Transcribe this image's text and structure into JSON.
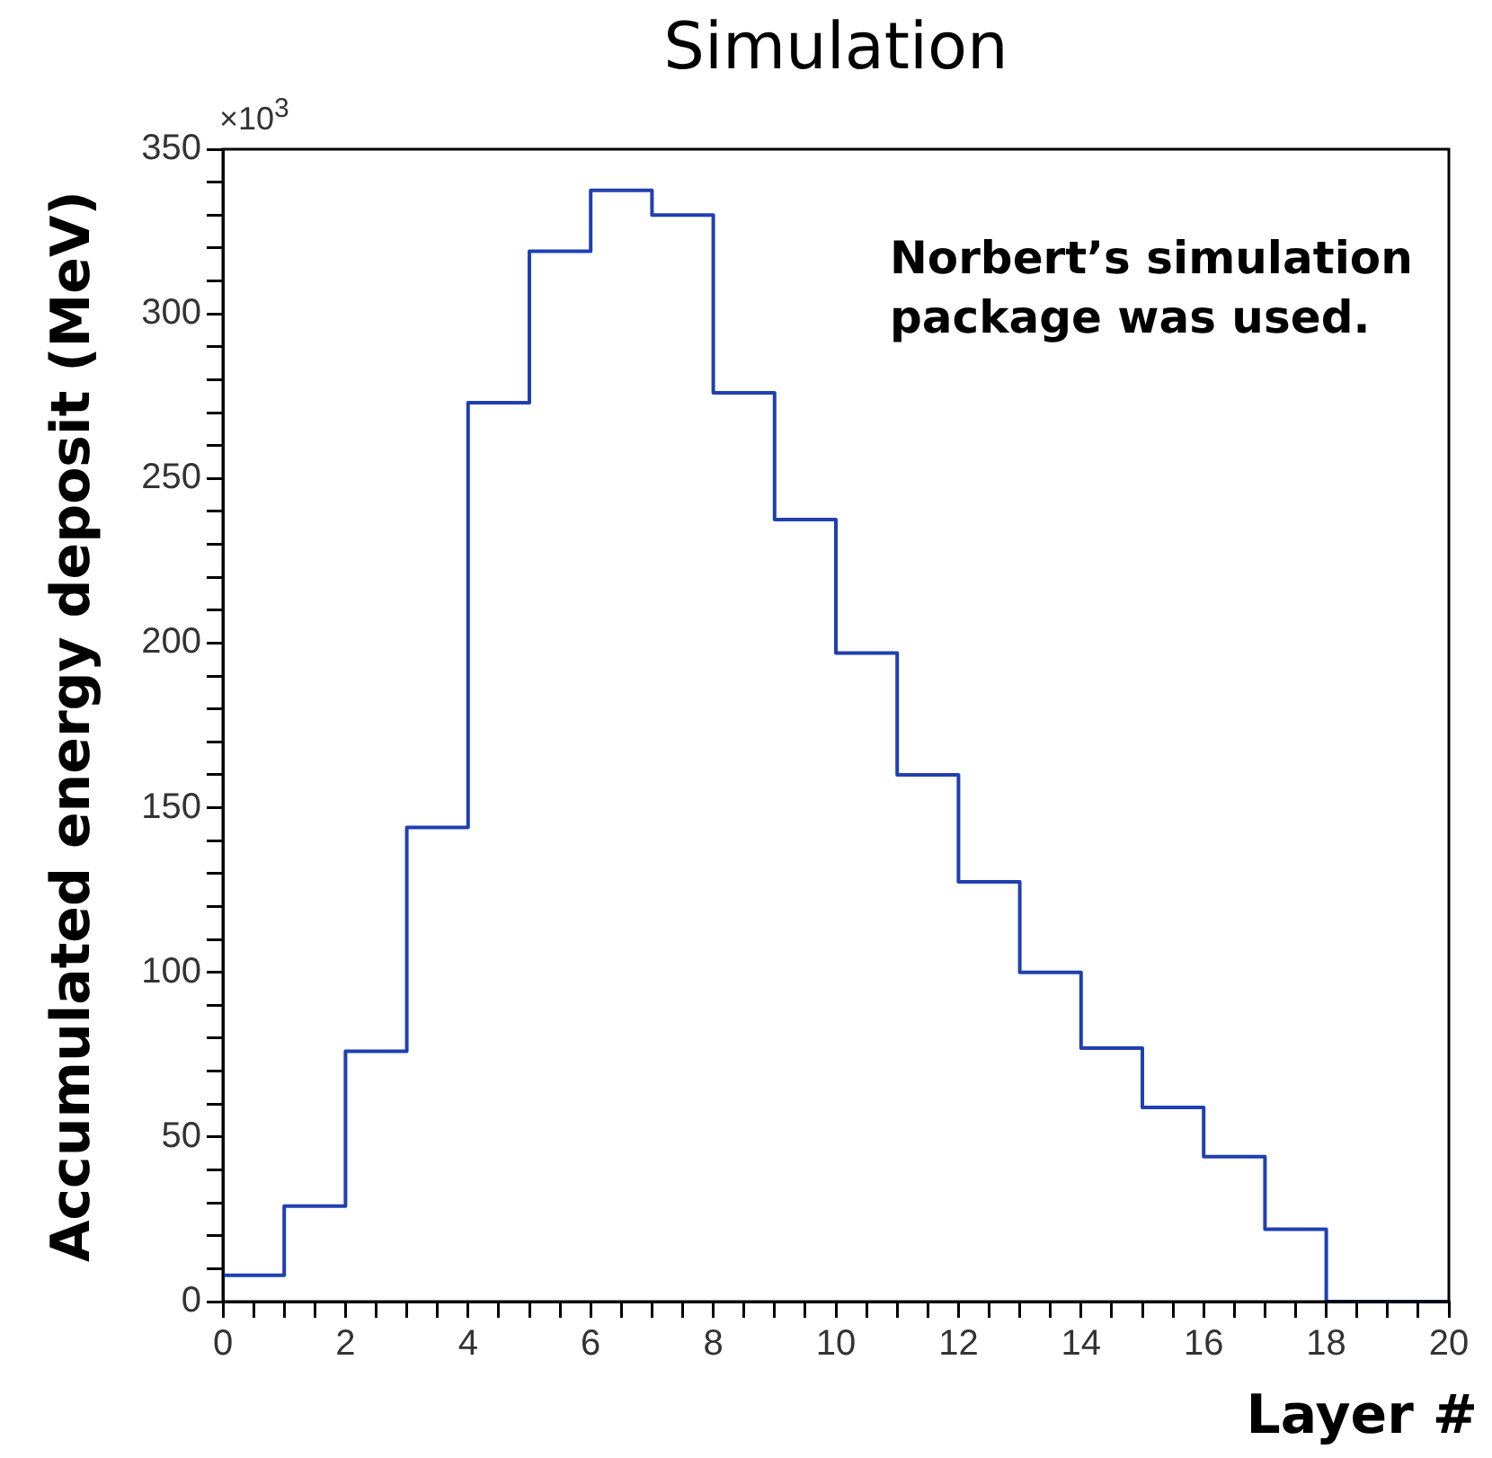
{
  "chart_data": {
    "type": "histogram",
    "title": "Simulation",
    "xlabel": "Layer #",
    "ylabel": "Accumulated energy deposit (MeV)",
    "annotations": [
      "×10$^{3}$",
      "Norbert’s simulation package was used."
    ],
    "bins": [
      0,
      1,
      2,
      3,
      4,
      5,
      6,
      7,
      8,
      9,
      10,
      11,
      12,
      13,
      14,
      15,
      16,
      17,
      18,
      19,
      20
    ],
    "values": [
      8,
      29,
      76,
      144,
      273,
      319,
      337.5,
      330,
      276,
      237.5,
      197,
      160,
      127.5,
      100,
      77,
      59,
      44,
      22,
      0,
      0
    ],
    "color": "#2040b0",
    "xlim": [
      0,
      20
    ],
    "xticks": [
      0,
      {
        "value": 0.5,
        "label": null
      },
      {
        "value": 1,
        "label": null
      },
      {
        "value": 1.5,
        "label": null
      },
      2,
      {
        "value": 2.5,
        "label": null
      },
      {
        "value": 3,
        "label": null
      },
      {
        "value": 3.5,
        "label": null
      },
      4,
      {
        "value": 4.5,
        "label": null
      },
      {
        "value": 5,
        "label": null
      },
      {
        "value": 5.5,
        "label": null
      },
      6,
      {
        "value": 6.5,
        "label": null
      },
      {
        "value": 7,
        "label": null
      },
      {
        "value": 7.5,
        "label": null
      },
      8,
      {
        "value": 8.5,
        "label": null
      },
      {
        "value": 9,
        "label": null
      },
      {
        "value": 9.5,
        "label": null
      },
      10,
      {
        "value": 10.5,
        "label": null
      },
      {
        "value": 11,
        "label": null
      },
      {
        "value": 11.5,
        "label": null
      },
      12,
      {
        "value": 12.5,
        "label": null
      },
      {
        "value": 13,
        "label": null
      },
      {
        "value": 13.5,
        "label": null
      },
      14,
      {
        "value": 14.5,
        "label": null
      },
      {
        "value": 15,
        "label": null
      },
      {
        "value": 15.5,
        "label": null
      },
      16,
      {
        "value": 16.5,
        "label": null
      },
      {
        "value": 17,
        "label": null
      },
      {
        "value": 17.5,
        "label": null
      },
      18,
      {
        "value": 18.5,
        "label": null
      },
      {
        "value": 19,
        "label": null
      },
      {
        "value": 19.5,
        "label": null
      },
      20
    ],
    "ylim": [
      0,
      350
    ],
    "yticks": [
      0,
      {
        "value": 10,
        "label": null
      },
      {
        "value": 20,
        "label": null
      },
      {
        "value": 30,
        "label": null
      },
      {
        "value": 40,
        "label": null
      },
      50,
      {
        "value": 60,
        "label": null
      },
      {
        "value": 70,
        "label": null
      },
      {
        "value": 80,
        "label": null
      },
      {
        "value": 90,
        "label": null
      },
      100,
      {
        "value": 110,
        "label": null
      },
      {
        "value": 120,
        "label": null
      },
      {
        "value": 130,
        "label": null
      },
      {
        "value": 140,
        "label": null
      },
      150,
      {
        "value": 160,
        "label": null
      },
      {
        "value": 170,
        "label": null
      },
      {
        "value": 180,
        "label": null
      },
      {
        "value": 190,
        "label": null
      },
      200,
      {
        "value": 210,
        "label": null
      },
      {
        "value": 220,
        "label": null
      },
      {
        "value": 230,
        "label": null
      },
      {
        "value": 240,
        "label": null
      },
      250,
      {
        "value": 260,
        "label": null
      },
      {
        "value": 270,
        "label": null
      },
      {
        "value": 280,
        "label": null
      },
      {
        "value": 290,
        "label": null
      },
      300,
      {
        "value": 310,
        "label": null
      },
      {
        "value": 320,
        "label": null
      },
      {
        "value": 330,
        "label": null
      },
      {
        "value": 340,
        "label": null
      },
      350
    ],
    "grid": false,
    "legend": false
  }
}
